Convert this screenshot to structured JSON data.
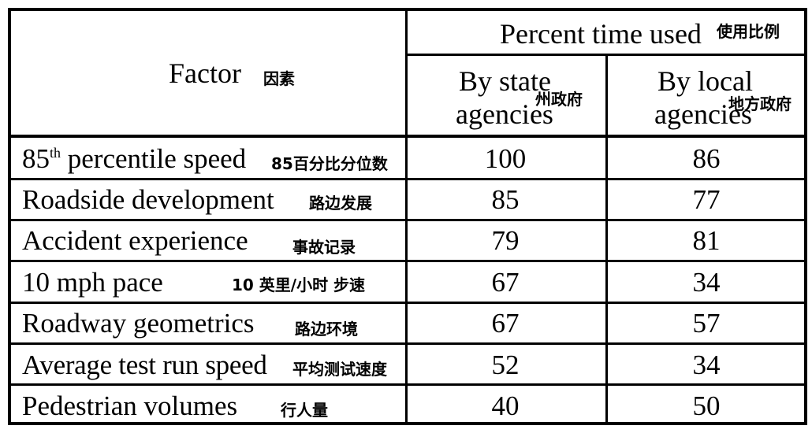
{
  "header": {
    "factor_label": "Factor",
    "factor_cn": "因素",
    "percent_label": "Percent time used",
    "percent_cn": "使用比例",
    "state_line1": "By state",
    "state_line2": "agencies",
    "state_cn": "州政府",
    "local_line1": "By local",
    "local_line2": "agencies",
    "local_cn": "地方政府"
  },
  "rows": [
    {
      "factor_pre": "85",
      "factor_sup": "th",
      "factor_post": " percentile speed",
      "cn": "85百分比分位数",
      "state": "100",
      "local": "86"
    },
    {
      "factor": "Roadside development",
      "cn": "路边发展",
      "state": "85",
      "local": "77"
    },
    {
      "factor": "Accident experience",
      "cn": "事故记录",
      "state": "79",
      "local": "81"
    },
    {
      "factor": "10 mph pace",
      "cn": "10 英里/小时 步速",
      "state": "67",
      "local": "34"
    },
    {
      "factor": "Roadway geometrics",
      "cn": "路边环境",
      "state": "67",
      "local": "57"
    },
    {
      "factor": "Average test run speed",
      "cn": "平均测试速度",
      "state": "52",
      "local": "34"
    },
    {
      "factor": "Pedestrian volumes",
      "cn": "行人量",
      "state": "40",
      "local": "50"
    }
  ]
}
